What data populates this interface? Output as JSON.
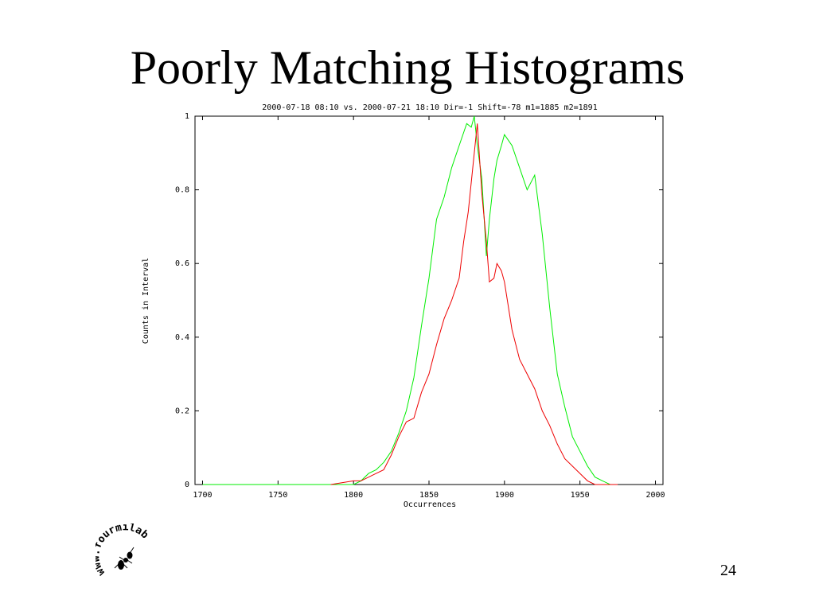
{
  "slide": {
    "title": "Poorly Matching Histograms",
    "page_number": "24"
  },
  "logo": {
    "text": "www.fourmilab.ch",
    "icon": "ant-icon"
  },
  "colors": {
    "series_green": "#00ee00",
    "series_red": "#ee0000",
    "axis": "#000000"
  },
  "chart_data": {
    "type": "line",
    "title": "2000-07-18 08:10 vs. 2000-07-21 18:10 Dir=-1 Shift=-78 m1=1885 m2=1891",
    "xlabel": "Occurrences",
    "ylabel": "Counts in Interval",
    "xlim": [
      1695,
      2005
    ],
    "ylim": [
      0,
      1
    ],
    "xticks": [
      1700,
      1750,
      1800,
      1850,
      1900,
      1950,
      2000
    ],
    "yticks": [
      0,
      0.2,
      0.4,
      0.6,
      0.8,
      1
    ],
    "ytick_labels": [
      "0",
      "0.2",
      "0.4",
      "0.6",
      "0.8",
      "1"
    ],
    "grid": false,
    "series": [
      {
        "color": "#00ee00",
        "x": [
          1700,
          1800,
          1805,
          1810,
          1815,
          1820,
          1825,
          1830,
          1835,
          1840,
          1845,
          1850,
          1855,
          1860,
          1865,
          1870,
          1875,
          1878,
          1880,
          1882,
          1885,
          1888,
          1890,
          1893,
          1895,
          1898,
          1900,
          1905,
          1910,
          1915,
          1920,
          1925,
          1930,
          1935,
          1940,
          1945,
          1950,
          1955,
          1960,
          1965,
          1970,
          1975
        ],
        "y": [
          0,
          0,
          0.01,
          0.03,
          0.04,
          0.06,
          0.09,
          0.14,
          0.2,
          0.29,
          0.43,
          0.56,
          0.72,
          0.78,
          0.86,
          0.92,
          0.98,
          0.97,
          1.0,
          0.92,
          0.83,
          0.62,
          0.72,
          0.83,
          0.88,
          0.92,
          0.95,
          0.92,
          0.86,
          0.8,
          0.84,
          0.68,
          0.48,
          0.3,
          0.21,
          0.13,
          0.09,
          0.05,
          0.02,
          0.01,
          0.0,
          0.0
        ]
      },
      {
        "color": "#ee0000",
        "x": [
          1785,
          1800,
          1805,
          1810,
          1815,
          1820,
          1825,
          1830,
          1835,
          1840,
          1845,
          1850,
          1855,
          1860,
          1865,
          1870,
          1873,
          1876,
          1878,
          1880,
          1882,
          1885,
          1888,
          1890,
          1893,
          1895,
          1898,
          1900,
          1905,
          1910,
          1915,
          1920,
          1925,
          1930,
          1935,
          1940,
          1945,
          1950,
          1955,
          1960,
          1965,
          1970,
          1975
        ],
        "y": [
          0,
          0.01,
          0.01,
          0.02,
          0.03,
          0.04,
          0.08,
          0.13,
          0.17,
          0.18,
          0.25,
          0.3,
          0.38,
          0.45,
          0.5,
          0.56,
          0.66,
          0.74,
          0.82,
          0.9,
          0.98,
          0.79,
          0.66,
          0.55,
          0.56,
          0.6,
          0.58,
          0.55,
          0.42,
          0.34,
          0.3,
          0.26,
          0.2,
          0.16,
          0.11,
          0.07,
          0.05,
          0.03,
          0.01,
          0.0,
          0.0,
          0.0,
          0.0
        ]
      }
    ]
  }
}
